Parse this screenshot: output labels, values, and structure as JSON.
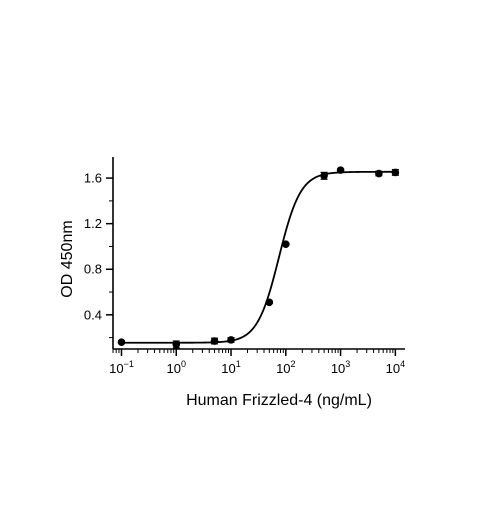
{
  "chart_data": {
    "type": "scatter",
    "title": "",
    "xlabel": "Human Frizzled-4 (ng/mL)",
    "ylabel": "OD 450nm",
    "xscale": "log",
    "xlim": [
      0.07,
      15000
    ],
    "ylim": [
      0.1,
      1.75
    ],
    "x_ticks": [
      {
        "value": 0.1,
        "base": "10",
        "exp": "−1"
      },
      {
        "value": 1,
        "base": "10",
        "exp": "0"
      },
      {
        "value": 10,
        "base": "10",
        "exp": "1"
      },
      {
        "value": 100,
        "base": "10",
        "exp": "2"
      },
      {
        "value": 1000,
        "base": "10",
        "exp": "3"
      },
      {
        "value": 10000,
        "base": "10",
        "exp": "4"
      }
    ],
    "y_ticks": [
      {
        "value": 0.4,
        "label": "0.4"
      },
      {
        "value": 0.8,
        "label": "0.8"
      },
      {
        "value": 1.2,
        "label": "1.2"
      },
      {
        "value": 1.6,
        "label": "1.6"
      }
    ],
    "y_minor_ticks": [
      0.2,
      0.6,
      1.0,
      1.4
    ],
    "grid": false,
    "legend": "none",
    "marker_color": "#000000",
    "series": [
      {
        "points": [
          {
            "x": 0.1,
            "y": 0.16,
            "err": 0.01
          },
          {
            "x": 1,
            "y": 0.14,
            "err": 0.03
          },
          {
            "x": 5,
            "y": 0.17,
            "err": 0.025
          },
          {
            "x": 10,
            "y": 0.18,
            "err": 0.02
          },
          {
            "x": 50,
            "y": 0.51,
            "err": 0.01
          },
          {
            "x": 100,
            "y": 1.02,
            "err": 0.01
          },
          {
            "x": 500,
            "y": 1.62,
            "err": 0.03
          },
          {
            "x": 1000,
            "y": 1.67,
            "err": 0.01
          },
          {
            "x": 5000,
            "y": 1.64,
            "err": 0.02
          },
          {
            "x": 10000,
            "y": 1.65,
            "err": 0.025
          }
        ]
      }
    ],
    "fit_curve": {
      "model": "4PL",
      "bottom": 0.155,
      "top": 1.655,
      "ec50": 75,
      "hill": 2.2
    }
  }
}
